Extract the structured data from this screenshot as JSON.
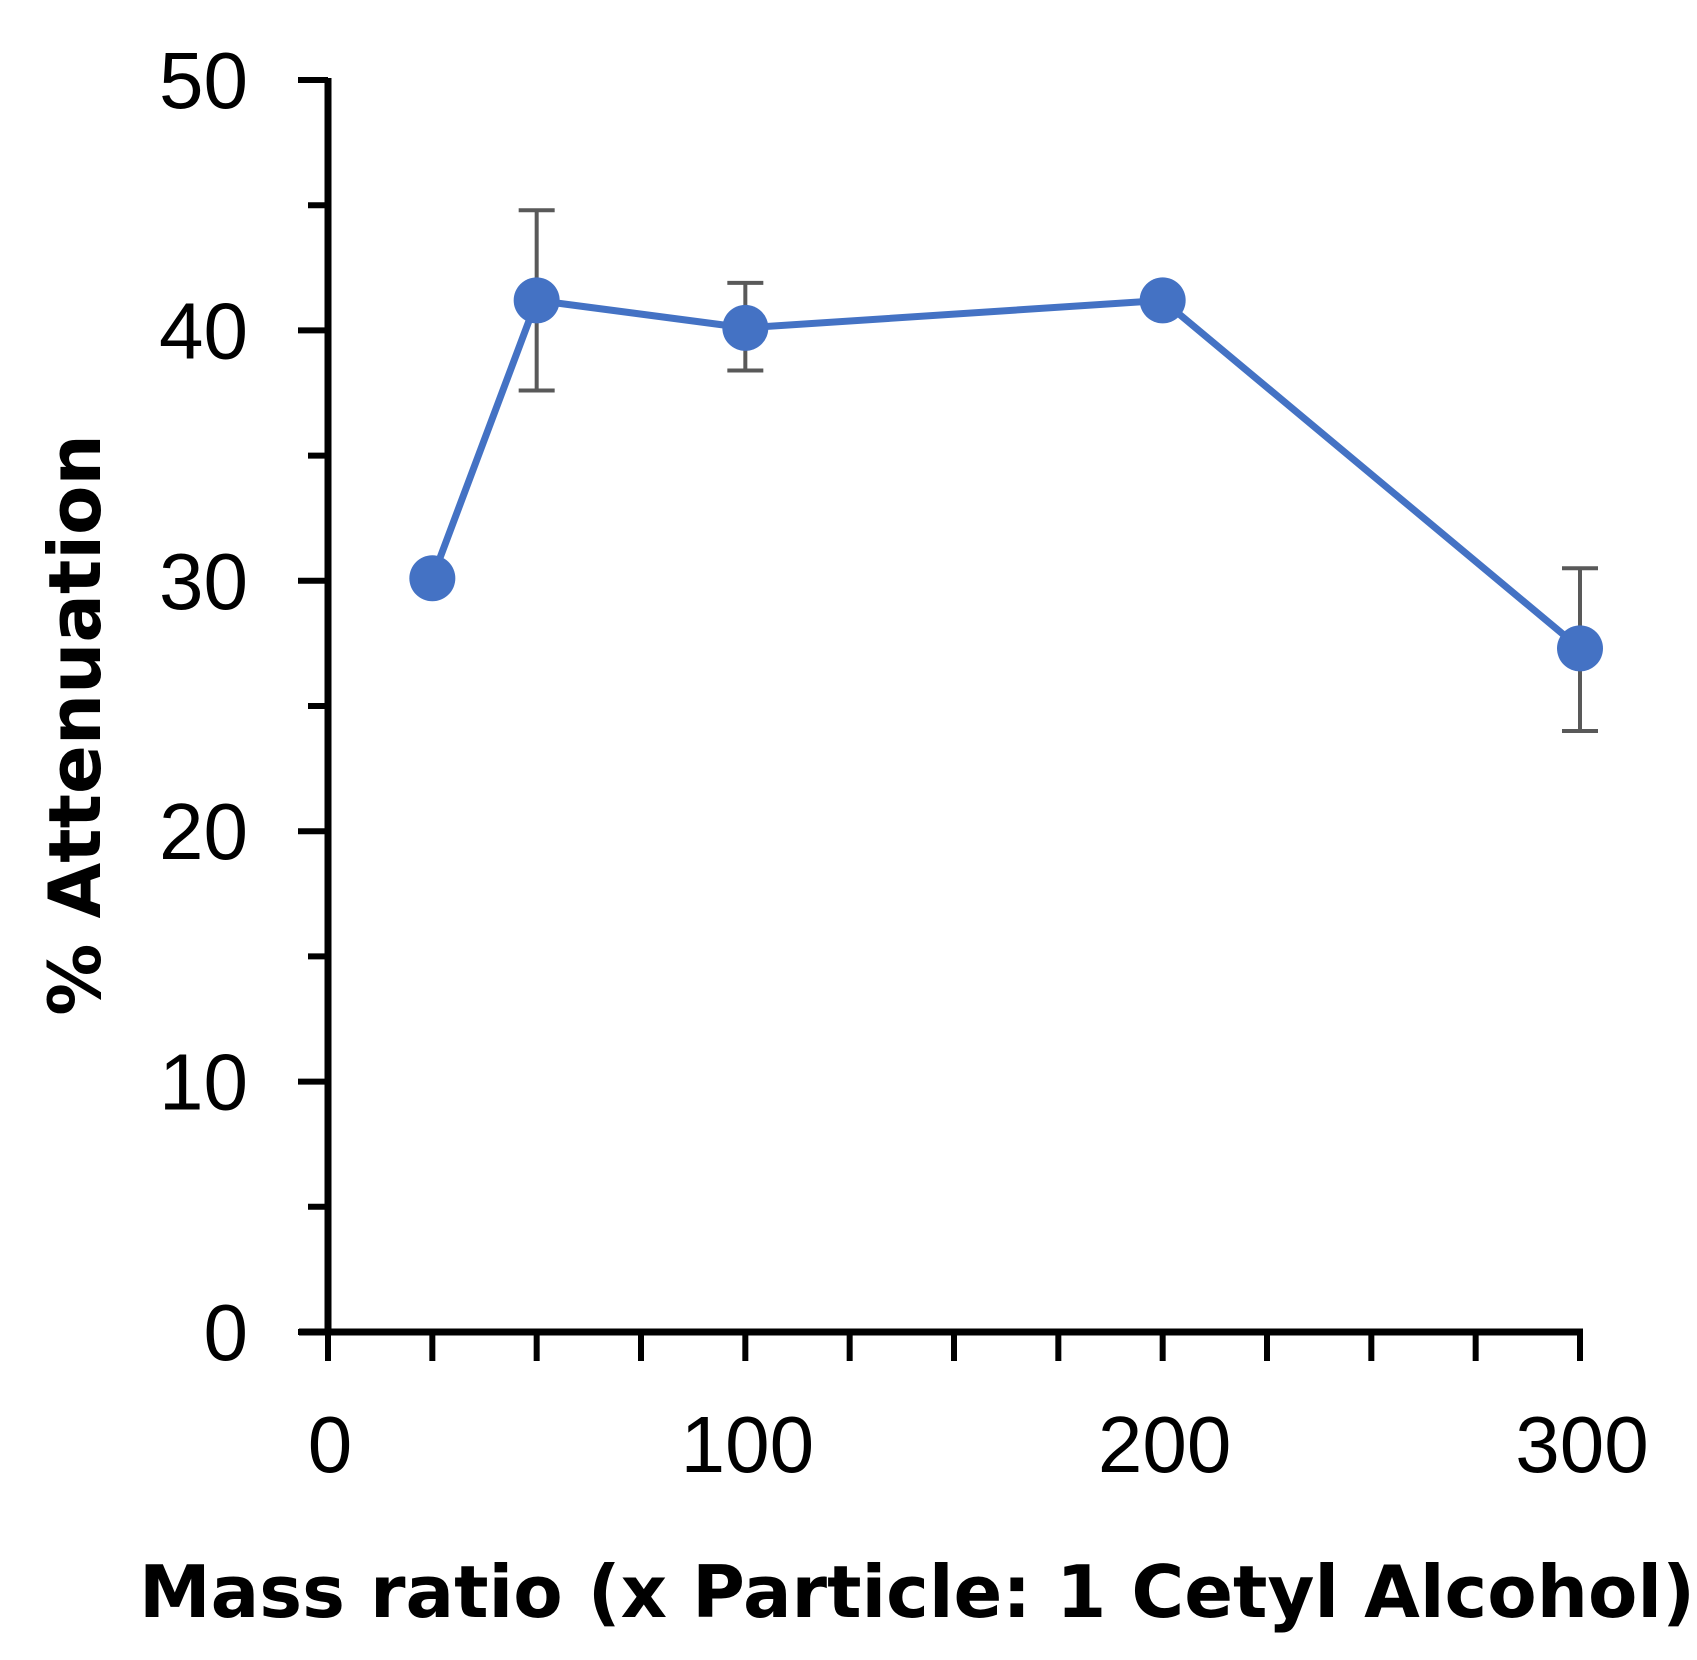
{
  "chart_data": {
    "type": "line",
    "title": "",
    "xlabel": "Mass ratio (x Particle: 1 Cetyl Alcohol)",
    "ylabel": "% Attenuation",
    "xlim": [
      0,
      300
    ],
    "ylim": [
      0,
      50
    ],
    "x_major_ticks": [
      0,
      100,
      200,
      300
    ],
    "x_minor_ticks": [
      0,
      25,
      50,
      75,
      100,
      125,
      150,
      175,
      200,
      225,
      250,
      275,
      300
    ],
    "y_major_ticks": [
      0,
      10,
      20,
      30,
      40,
      50
    ],
    "y_minor_ticks": [
      5,
      15,
      25,
      35,
      45
    ],
    "x_tick_labels": [
      "0",
      "100",
      "200",
      "300"
    ],
    "y_tick_labels": [
      "0",
      "10",
      "20",
      "30",
      "40",
      "50"
    ],
    "grid": false,
    "legend": "none",
    "series": [
      {
        "name": "Attenuation",
        "color": "#4472C4",
        "x": [
          25,
          50,
          100,
          200,
          300
        ],
        "y": [
          30.1,
          41.2,
          40.1,
          41.2,
          27.3
        ],
        "error_low": [
          null,
          37.6,
          38.4,
          null,
          24.0
        ],
        "error_high": [
          null,
          44.8,
          41.9,
          null,
          30.5
        ]
      }
    ],
    "errorbar_color": "#595959"
  }
}
